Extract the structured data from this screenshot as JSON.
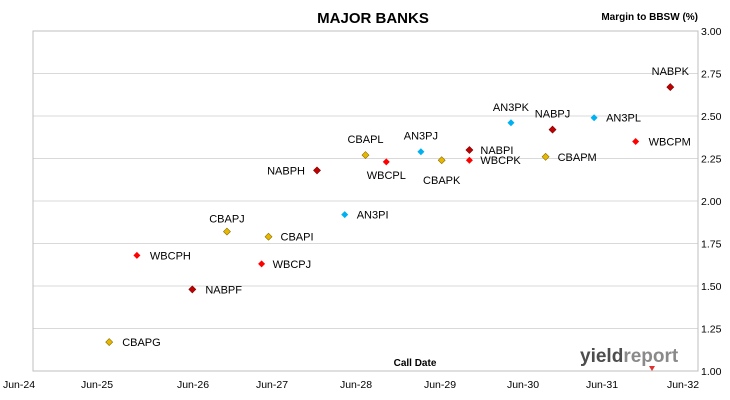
{
  "chart_data": {
    "type": "scatter",
    "title": "MAJOR BANKS",
    "ylabel": "Margin to BBSW (%)",
    "xlabel": "Call Date",
    "xlim": [
      "2024-06",
      "2032-06"
    ],
    "ylim": [
      1.0,
      3.0
    ],
    "x_ticks": [
      "Jun-24",
      "Jun-25",
      "Jun-26",
      "Jun-27",
      "Jun-28",
      "Jun-29",
      "Jun-30",
      "Jun-31",
      "Jun-32"
    ],
    "y_ticks": [
      "1.00",
      "1.25",
      "1.50",
      "1.75",
      "2.00",
      "2.25",
      "2.50",
      "2.75",
      "3.00"
    ],
    "grid": true,
    "colors": {
      "CBA": "#e6b800",
      "NAB": "#c00000",
      "WBC": "#ff0000",
      "ANZ": "#00b0f0"
    },
    "points": [
      {
        "label": "CBAPG",
        "x": "2025-05",
        "y": 1.17,
        "issuer": "CBA"
      },
      {
        "label": "WBCPH",
        "x": "2025-09",
        "y": 1.68,
        "issuer": "WBC"
      },
      {
        "label": "NABPF",
        "x": "2026-05",
        "y": 1.48,
        "issuer": "NAB"
      },
      {
        "label": "CBAPJ",
        "x": "2026-10",
        "y": 1.82,
        "issuer": "CBA"
      },
      {
        "label": "WBCPJ",
        "x": "2027-03",
        "y": 1.63,
        "issuer": "WBC"
      },
      {
        "label": "CBAPI",
        "x": "2027-04",
        "y": 1.79,
        "issuer": "CBA"
      },
      {
        "label": "NABPH",
        "x": "2027-11",
        "y": 2.18,
        "issuer": "NAB"
      },
      {
        "label": "AN3PI",
        "x": "2028-03",
        "y": 1.92,
        "issuer": "ANZ"
      },
      {
        "label": "CBAPL",
        "x": "2028-06",
        "y": 2.27,
        "issuer": "CBA"
      },
      {
        "label": "WBCPL",
        "x": "2028-09",
        "y": 2.23,
        "issuer": "WBC"
      },
      {
        "label": "AN3PJ",
        "x": "2029-02",
        "y": 2.29,
        "issuer": "ANZ"
      },
      {
        "label": "CBAPK",
        "x": "2029-05",
        "y": 2.24,
        "issuer": "CBA"
      },
      {
        "label": "NABPI",
        "x": "2029-09",
        "y": 2.3,
        "issuer": "NAB"
      },
      {
        "label": "WBCPK",
        "x": "2029-09",
        "y": 2.24,
        "issuer": "WBC"
      },
      {
        "label": "AN3PK",
        "x": "2030-03",
        "y": 2.46,
        "issuer": "ANZ"
      },
      {
        "label": "CBAPM",
        "x": "2030-08",
        "y": 2.26,
        "issuer": "CBA"
      },
      {
        "label": "NABPJ",
        "x": "2030-09",
        "y": 2.42,
        "issuer": "NAB"
      },
      {
        "label": "AN3PL",
        "x": "2031-03",
        "y": 2.49,
        "issuer": "ANZ"
      },
      {
        "label": "WBCPM",
        "x": "2031-09",
        "y": 2.35,
        "issuer": "WBC"
      },
      {
        "label": "NABPK",
        "x": "2032-02",
        "y": 2.67,
        "issuer": "NAB"
      }
    ]
  },
  "branding": {
    "logo_part1": "yield",
    "logo_part2": "report"
  }
}
